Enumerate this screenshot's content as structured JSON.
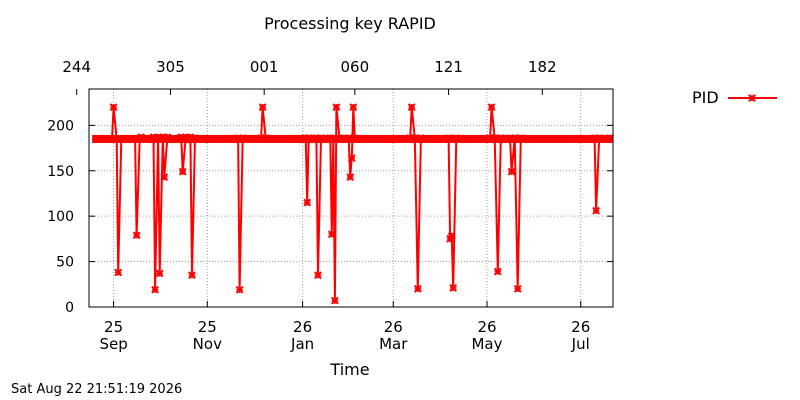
{
  "footer": {
    "timestamp": "Sat Aug 22 21:51:19 2026"
  },
  "chart_data": {
    "type": "line",
    "title": "Processing key RAPID",
    "xlabel": "Time",
    "ylabel": "",
    "x_unit": "date",
    "xlim": [
      "2025-09-09",
      "2026-08-16"
    ],
    "ylim": [
      0,
      240
    ],
    "yticks": [
      0,
      50,
      100,
      150,
      200
    ],
    "xticks_bottom": [
      {
        "date": "2025-09-25",
        "day": "25",
        "month": "Sep"
      },
      {
        "date": "2025-11-25",
        "day": "25",
        "month": "Nov"
      },
      {
        "date": "2026-01-26",
        "day": "26",
        "month": "Jan"
      },
      {
        "date": "2026-03-26",
        "day": "26",
        "month": "Mar"
      },
      {
        "date": "2026-05-26",
        "day": "26",
        "month": "May"
      },
      {
        "date": "2026-07-26",
        "day": "26",
        "month": "Jul"
      }
    ],
    "xticks_top": [
      {
        "date": "2025-09-01",
        "label": "244"
      },
      {
        "date": "2025-11-01",
        "label": "305"
      },
      {
        "date": "2026-01-01",
        "label": "001"
      },
      {
        "date": "2026-03-01",
        "label": "060"
      },
      {
        "date": "2026-05-01",
        "label": "121"
      },
      {
        "date": "2026-07-01",
        "label": "182"
      }
    ],
    "grid": true,
    "legend": "right",
    "series": [
      {
        "name": "PID",
        "color": "#ff0000",
        "marker": "x",
        "baseline": 185,
        "start": "2025-09-13",
        "end": "2026-08-14",
        "points": [
          [
            "2025-09-13",
            185
          ],
          [
            "2025-09-24",
            185
          ],
          [
            "2025-09-25",
            220
          ],
          [
            "2025-09-27",
            185
          ],
          [
            "2025-09-28",
            38
          ],
          [
            "2025-09-30",
            185
          ],
          [
            "2025-10-09",
            185
          ],
          [
            "2025-10-10",
            79
          ],
          [
            "2025-10-12",
            185
          ],
          [
            "2025-10-13",
            187
          ],
          [
            "2025-10-21",
            187
          ],
          [
            "2025-10-22",
            19
          ],
          [
            "2025-10-24",
            187
          ],
          [
            "2025-10-25",
            37
          ],
          [
            "2025-10-27",
            187
          ],
          [
            "2025-10-28",
            143
          ],
          [
            "2025-10-30",
            187
          ],
          [
            "2025-11-08",
            187
          ],
          [
            "2025-11-09",
            149
          ],
          [
            "2025-11-11",
            187
          ],
          [
            "2025-11-14",
            187
          ],
          [
            "2025-11-15",
            35
          ],
          [
            "2025-11-17",
            186
          ],
          [
            "2025-12-15",
            186
          ],
          [
            "2025-12-16",
            19
          ],
          [
            "2025-12-18",
            186
          ],
          [
            "2025-12-30",
            186
          ],
          [
            "2025-12-31",
            220
          ],
          [
            "2026-01-02",
            186
          ],
          [
            "2026-01-28",
            186
          ],
          [
            "2026-01-29",
            115
          ],
          [
            "2026-01-30",
            186
          ],
          [
            "2026-02-04",
            186
          ],
          [
            "2026-02-05",
            35
          ],
          [
            "2026-02-07",
            186
          ],
          [
            "2026-02-13",
            186
          ],
          [
            "2026-02-14",
            80
          ],
          [
            "2026-02-15",
            186
          ],
          [
            "2026-02-16",
            7
          ],
          [
            "2026-02-17",
            220
          ],
          [
            "2026-02-19",
            186
          ],
          [
            "2026-02-25",
            186
          ],
          [
            "2026-02-26",
            143
          ],
          [
            "2026-02-27",
            164
          ],
          [
            "2026-02-28",
            220
          ],
          [
            "2026-03-01",
            186
          ],
          [
            "2026-04-06",
            186
          ],
          [
            "2026-04-07",
            220
          ],
          [
            "2026-04-09",
            186
          ],
          [
            "2026-04-11",
            20
          ],
          [
            "2026-04-13",
            186
          ],
          [
            "2026-05-01",
            186
          ],
          [
            "2026-05-02",
            75
          ],
          [
            "2026-05-03",
            78
          ],
          [
            "2026-05-04",
            21
          ],
          [
            "2026-05-06",
            186
          ],
          [
            "2026-05-28",
            186
          ],
          [
            "2026-05-29",
            220
          ],
          [
            "2026-05-31",
            186
          ],
          [
            "2026-06-02",
            39
          ],
          [
            "2026-06-04",
            186
          ],
          [
            "2026-06-10",
            186
          ],
          [
            "2026-06-11",
            149
          ],
          [
            "2026-06-13",
            186
          ],
          [
            "2026-06-15",
            20
          ],
          [
            "2026-06-17",
            186
          ],
          [
            "2026-08-04",
            186
          ],
          [
            "2026-08-05",
            106
          ],
          [
            "2026-08-07",
            186
          ],
          [
            "2026-08-14",
            186
          ]
        ]
      }
    ]
  }
}
